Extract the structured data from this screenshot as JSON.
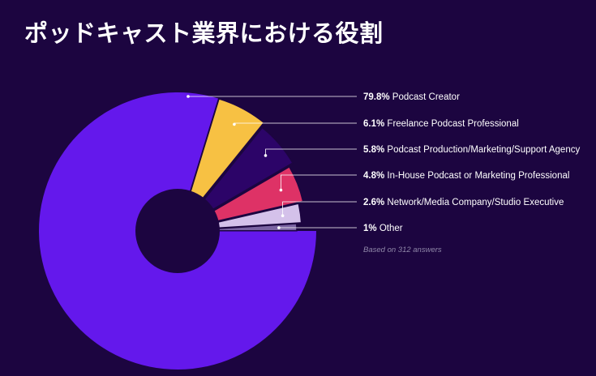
{
  "title": "ポッドキャスト業界における役割",
  "note": "Based on 312 answers",
  "colors": {
    "background": "#1c0540",
    "hole": "#1c0540",
    "leader": "#ffffff"
  },
  "chart_data": {
    "type": "pie",
    "donut": true,
    "title": "ポッドキャスト業界における役割",
    "total_answers": 312,
    "slices": [
      {
        "label": "Podcast Creator",
        "pct_label": "79.8%",
        "value": 79.8,
        "color": "#6418ec"
      },
      {
        "label": "Freelance Podcast Professional",
        "pct_label": "6.1%",
        "value": 6.1,
        "color": "#f7c143"
      },
      {
        "label": "Podcast Production/Marketing/Support Agency",
        "pct_label": "5.8%",
        "value": 5.8,
        "color": "#2c0468"
      },
      {
        "label": "In-House Podcast or Marketing Professional",
        "pct_label": "4.8%",
        "value": 4.8,
        "color": "#de3266"
      },
      {
        "label": "Network/Media Company/Studio Executive",
        "pct_label": "2.6%",
        "value": 2.6,
        "color": "#d4c1ea"
      },
      {
        "label": "Other",
        "pct_label": "1%",
        "value": 1,
        "color": "#7a63a2"
      }
    ]
  }
}
